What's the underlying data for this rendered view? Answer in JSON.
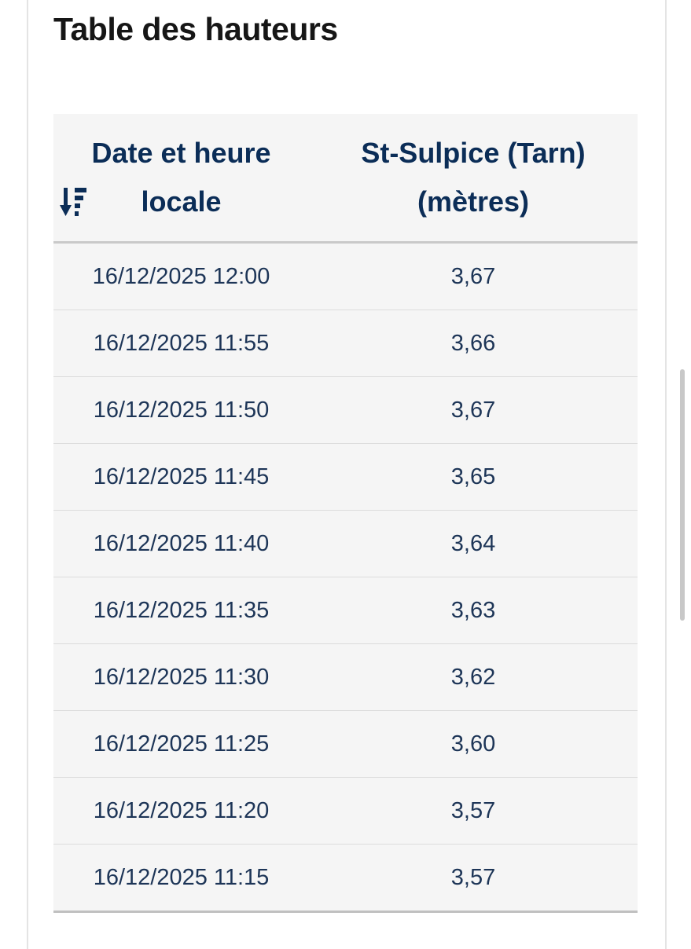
{
  "title": "Table des hauteurs",
  "table": {
    "headers": {
      "date_line1": "Date et heure",
      "date_line2": "locale",
      "value_line1": "St-Sulpice (Tarn)",
      "value_line2": "(mètres)"
    },
    "sort_icon": "sort-descending-icon",
    "rows": [
      {
        "date": "16/12/2025 12:00",
        "value": "3,67"
      },
      {
        "date": "16/12/2025 11:55",
        "value": "3,66"
      },
      {
        "date": "16/12/2025 11:50",
        "value": "3,67"
      },
      {
        "date": "16/12/2025 11:45",
        "value": "3,65"
      },
      {
        "date": "16/12/2025 11:40",
        "value": "3,64"
      },
      {
        "date": "16/12/2025 11:35",
        "value": "3,63"
      },
      {
        "date": "16/12/2025 11:30",
        "value": "3,62"
      },
      {
        "date": "16/12/2025 11:25",
        "value": "3,60"
      },
      {
        "date": "16/12/2025 11:20",
        "value": "3,57"
      },
      {
        "date": "16/12/2025 11:15",
        "value": "3,57"
      }
    ]
  },
  "colors": {
    "header_text": "#0b2d57",
    "cell_text": "#1d3557",
    "table_bg": "#f5f5f5"
  }
}
